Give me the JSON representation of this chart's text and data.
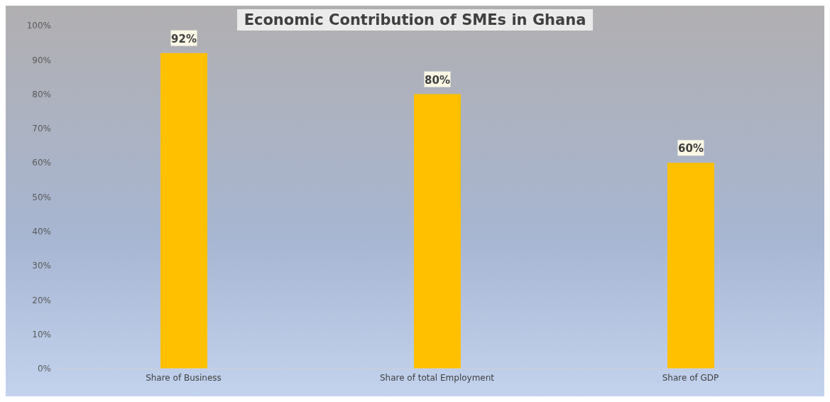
{
  "chart_data": {
    "type": "bar",
    "title": "Economic Contribution of SMEs in Ghana",
    "categories": [
      "Share of Business",
      "Share of total Employment",
      "Share of GDP"
    ],
    "values": [
      92,
      80,
      60
    ],
    "color": "#ffc000",
    "value_labels": [
      "92%",
      "80%",
      "60%"
    ],
    "ylim": [
      0,
      100
    ],
    "yticks": [
      {
        "value": 0,
        "label": "0%"
      },
      {
        "value": 10,
        "label": "10%"
      },
      {
        "value": 20,
        "label": "20%"
      },
      {
        "value": 30,
        "label": "30%"
      },
      {
        "value": 40,
        "label": "40%"
      },
      {
        "value": 50,
        "label": "50%"
      },
      {
        "value": 60,
        "label": "60%"
      },
      {
        "value": 70,
        "label": "70%"
      },
      {
        "value": 80,
        "label": "80%"
      },
      {
        "value": 90,
        "label": "90%"
      },
      {
        "value": 100,
        "label": "100%"
      }
    ]
  }
}
